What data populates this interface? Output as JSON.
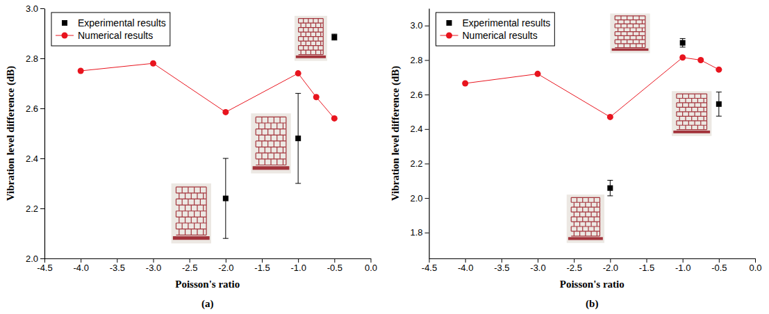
{
  "chart_data": [
    {
      "type": "line",
      "title": "(a)",
      "x_label": "Poisson's ratio",
      "y_label": "Vibration level difference (dB)",
      "xlim": [
        -4.5,
        0.0
      ],
      "xticks": [
        -4.5,
        {
          "value": -4.0,
          "label": "-4.0"
        },
        -3.5,
        {
          "value": -3.0,
          "label": "-3.0"
        },
        -2.5,
        {
          "value": -2.0,
          "label": "-2.0"
        },
        -1.5,
        {
          "value": -1.0,
          "label": "-1.0"
        },
        -0.5,
        {
          "value": 0.0,
          "label": "0.0"
        }
      ],
      "ylim": [
        2.0,
        3.0
      ],
      "yticks": [
        {
          "value": 2.0,
          "label": "2.0"
        },
        2.2,
        2.4,
        2.6,
        2.8,
        {
          "value": 3.0,
          "label": "3.0"
        }
      ],
      "legend": "upper left",
      "series": [
        {
          "name": "Experimental results",
          "type": "scatter",
          "marker": "square",
          "color": "#000000",
          "x": [
            -2.0,
            -1.0,
            -0.5
          ],
          "values": [
            2.24,
            2.48,
            2.885
          ],
          "errors": [
            0.16,
            0.18,
            0.012
          ]
        },
        {
          "name": "Numerical results",
          "type": "line",
          "marker": "circle",
          "line_style": "solid",
          "color": "#e8141e",
          "x": [
            -4.0,
            -3.0,
            -2.0,
            -1.0,
            -0.75,
            -0.5
          ],
          "values": [
            2.75,
            2.78,
            2.585,
            2.74,
            2.645,
            2.56
          ]
        }
      ]
    },
    {
      "type": "line",
      "title": "(b)",
      "x_label": "Poisson's ratio",
      "y_label": "Vibration level difference (dB)",
      "xlim": [
        -4.5,
        0.0
      ],
      "xticks": [
        -4.5,
        {
          "value": -4.0,
          "label": "-4.0"
        },
        -3.5,
        {
          "value": -3.0,
          "label": "-3.0"
        },
        -2.5,
        {
          "value": -2.0,
          "label": "-2.0"
        },
        -1.5,
        {
          "value": -1.0,
          "label": "-1.0"
        },
        -0.5,
        {
          "value": 0.0,
          "label": "0.0"
        }
      ],
      "ylim": [
        1.65,
        3.1
      ],
      "yticks": [
        1.8,
        {
          "value": 2.0,
          "label": "2.0"
        },
        2.2,
        2.4,
        2.6,
        2.8,
        {
          "value": 3.0,
          "label": "3.0"
        }
      ],
      "legend": "upper left",
      "series": [
        {
          "name": "Experimental results",
          "type": "scatter",
          "marker": "square",
          "color": "#000000",
          "x": [
            -2.0,
            -1.0,
            -0.5
          ],
          "values": [
            2.058,
            2.9,
            2.545
          ],
          "errors": [
            0.045,
            0.025,
            0.07
          ]
        },
        {
          "name": "Numerical results",
          "type": "line",
          "marker": "circle",
          "line_style": "solid",
          "color": "#e8141e",
          "x": [
            -4.0,
            -3.0,
            -2.0,
            -1.0,
            -0.75,
            -0.5
          ],
          "values": [
            2.665,
            2.72,
            2.47,
            2.815,
            2.8,
            2.745
          ]
        }
      ]
    }
  ]
}
